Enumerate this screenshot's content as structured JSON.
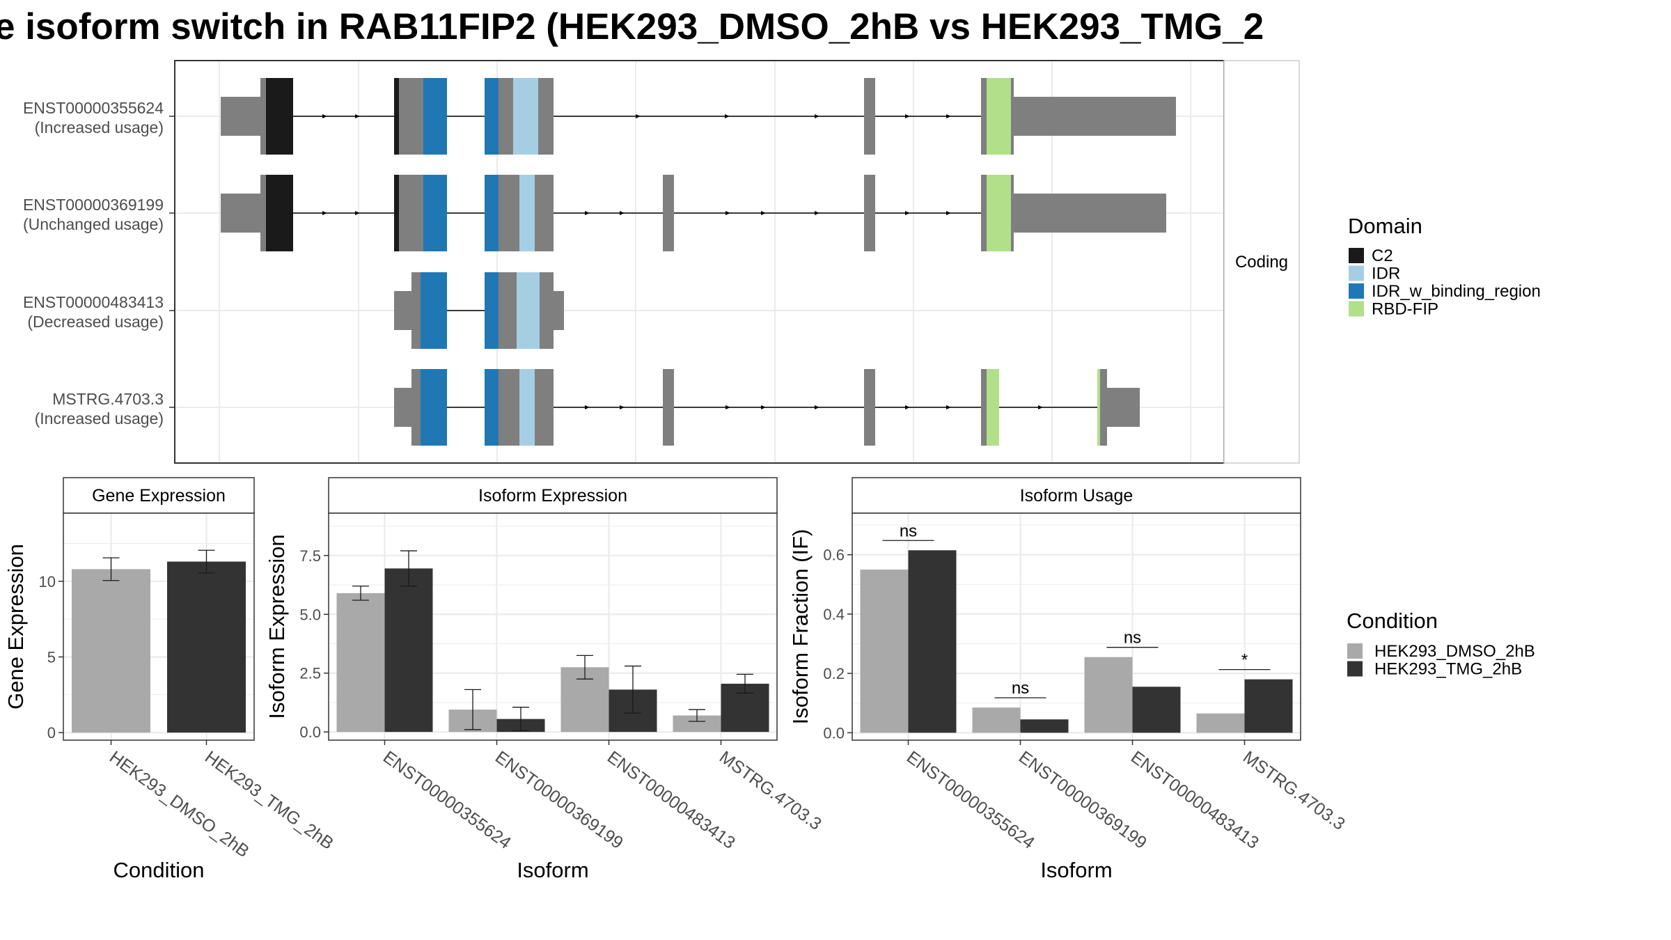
{
  "title": "e isoform switch in RAB11FIP2 (HEK293_DMSO_2hB vs HEK293_TMG_2",
  "colors": {
    "exon": "#7f7f7f",
    "C2": "#1a1a1a",
    "IDR": "#a6cee3",
    "IDR_w_binding_region": "#1f78b4",
    "RBD-FIP": "#b2df8a",
    "HEK293_DMSO_2hB": "#a9a9a9",
    "HEK293_TMG_2hB": "#333333"
  },
  "chart_data": [
    {
      "type": "gene-structure",
      "strip": "Coding",
      "legend": {
        "title": "Domain",
        "entries": [
          "C2",
          "IDR",
          "IDR_w_binding_region",
          "RBD-FIP"
        ]
      },
      "isoforms": [
        {
          "id": "ENST00000355624",
          "label": "(Increased usage)"
        },
        {
          "id": "ENST00000369199",
          "label": "(Unchanged usage)"
        },
        {
          "id": "ENST00000483413",
          "label": "(Decreased usage)"
        },
        {
          "id": "MSTRG.4703.3",
          "label": "(Increased usage)"
        }
      ]
    },
    {
      "type": "bar",
      "panel_title": "Gene Expression",
      "xlabel": "Condition",
      "ylabel": "Gene Expression",
      "ylim": [
        -0.5,
        14.5
      ],
      "yticks": [
        "0",
        "5",
        "10"
      ],
      "categories": [
        "HEK293_DMSO_2hB",
        "HEK293_TMG_2hB"
      ],
      "values": [
        10.8,
        11.3
      ],
      "errors": [
        0.75,
        0.75
      ]
    },
    {
      "type": "bar",
      "panel_title": "Isoform Expression",
      "xlabel": "Isoform",
      "ylabel": "Isoform Expression",
      "ylim": [
        -0.35,
        9.3
      ],
      "yticks": [
        "0.0",
        "2.5",
        "5.0",
        "7.5"
      ],
      "categories": [
        "ENST00000355624",
        "ENST00000369199",
        "ENST00000483413",
        "MSTRG.4703.3"
      ],
      "series": [
        {
          "name": "HEK293_DMSO_2hB",
          "values": [
            5.9,
            0.95,
            2.75,
            0.7
          ],
          "errors": [
            0.3,
            0.85,
            0.5,
            0.25
          ]
        },
        {
          "name": "HEK293_TMG_2hB",
          "values": [
            6.95,
            0.55,
            1.8,
            2.05
          ],
          "errors": [
            0.75,
            0.5,
            1.0,
            0.4
          ]
        }
      ]
    },
    {
      "type": "bar",
      "panel_title": "Isoform Usage",
      "xlabel": "Isoform",
      "ylabel": "Isoform Fraction (IF)",
      "ylim": [
        -0.025,
        0.74
      ],
      "yticks": [
        "0.0",
        "0.2",
        "0.4",
        "0.6"
      ],
      "categories": [
        "ENST00000355624",
        "ENST00000369199",
        "ENST00000483413",
        "MSTRG.4703.3"
      ],
      "series": [
        {
          "name": "HEK293_DMSO_2hB",
          "values": [
            0.55,
            0.085,
            0.255,
            0.065
          ]
        },
        {
          "name": "HEK293_TMG_2hB",
          "values": [
            0.615,
            0.045,
            0.155,
            0.18
          ]
        }
      ],
      "significance": [
        "ns",
        "ns",
        "ns",
        "*"
      ],
      "legend": {
        "title": "Condition",
        "entries": [
          "HEK293_DMSO_2hB",
          "HEK293_TMG_2hB"
        ]
      }
    }
  ]
}
